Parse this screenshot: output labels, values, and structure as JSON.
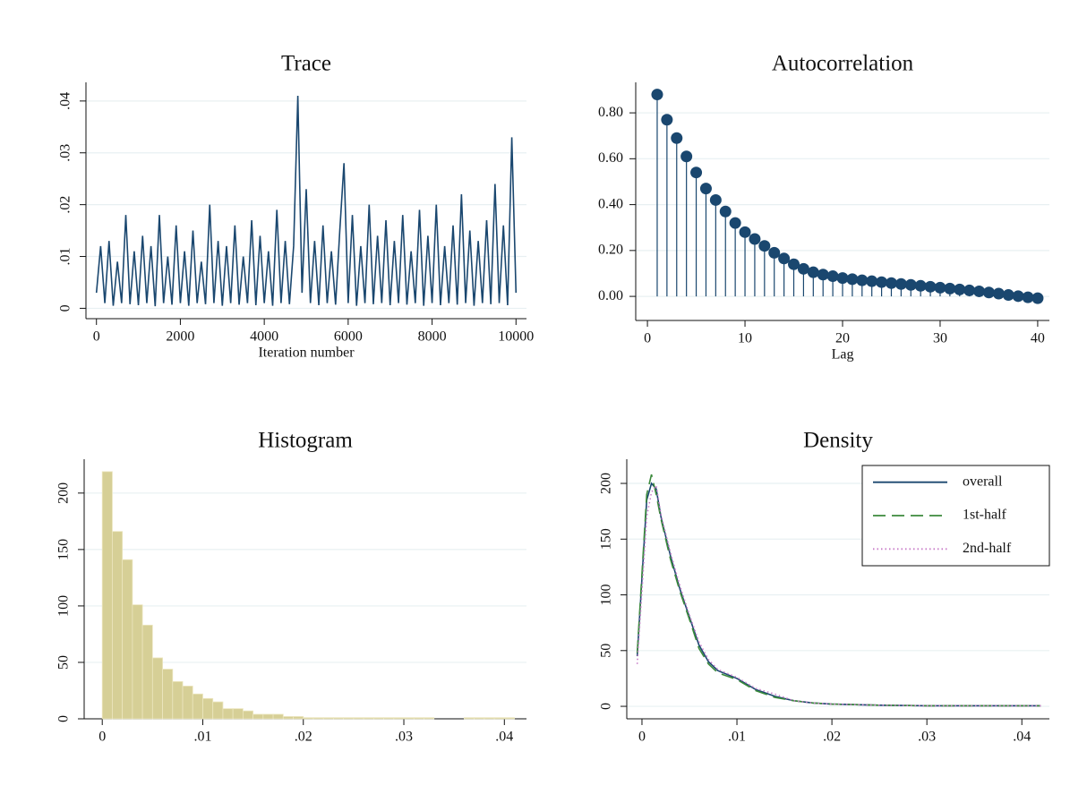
{
  "chart_data": [
    {
      "type": "line",
      "title": "Trace",
      "x_label": "Iteration number",
      "x": [
        0,
        100,
        200,
        300,
        400,
        500,
        600,
        700,
        800,
        900,
        1000,
        1100,
        1200,
        1300,
        1400,
        1500,
        1600,
        1700,
        1800,
        1900,
        2000,
        2100,
        2200,
        2300,
        2400,
        2500,
        2600,
        2700,
        2800,
        2900,
        3000,
        3100,
        3200,
        3300,
        3400,
        3500,
        3600,
        3700,
        3800,
        3900,
        4000,
        4100,
        4200,
        4300,
        4400,
        4500,
        4600,
        4700,
        4800,
        4900,
        5000,
        5100,
        5200,
        5300,
        5400,
        5500,
        5600,
        5700,
        5800,
        5900,
        6000,
        6100,
        6200,
        6300,
        6400,
        6500,
        6600,
        6700,
        6800,
        6900,
        7000,
        7100,
        7200,
        7300,
        7400,
        7500,
        7600,
        7700,
        7800,
        7900,
        8000,
        8100,
        8200,
        8300,
        8400,
        8500,
        8600,
        8700,
        8800,
        8900,
        9000,
        9100,
        9200,
        9300,
        9400,
        9500,
        9600,
        9700,
        9800,
        9900,
        10000
      ],
      "values": [
        0.003,
        0.012,
        0.001,
        0.013,
        0.0005,
        0.009,
        0.001,
        0.018,
        0.0008,
        0.011,
        0.0006,
        0.014,
        0.001,
        0.012,
        0.0004,
        0.018,
        0.001,
        0.01,
        0.0007,
        0.016,
        0.001,
        0.011,
        0.0005,
        0.015,
        0.001,
        0.009,
        0.0008,
        0.02,
        0.001,
        0.013,
        0.0005,
        0.012,
        0.001,
        0.016,
        0.0007,
        0.01,
        0.001,
        0.017,
        0.0006,
        0.014,
        0.001,
        0.011,
        0.0005,
        0.019,
        0.001,
        0.013,
        0.0008,
        0.012,
        0.041,
        0.003,
        0.023,
        0.001,
        0.013,
        0.0006,
        0.016,
        0.001,
        0.011,
        0.0007,
        0.015,
        0.028,
        0.001,
        0.018,
        0.0005,
        0.012,
        0.001,
        0.02,
        0.0008,
        0.014,
        0.001,
        0.017,
        0.0006,
        0.013,
        0.001,
        0.018,
        0.0007,
        0.011,
        0.001,
        0.019,
        0.0005,
        0.014,
        0.001,
        0.02,
        0.0006,
        0.012,
        0.001,
        0.016,
        0.0007,
        0.022,
        0.001,
        0.015,
        0.0005,
        0.013,
        0.001,
        0.017,
        0.0008,
        0.024,
        0.001,
        0.016,
        0.0006,
        0.033,
        0.003
      ],
      "color": "#1a476f",
      "xlim": [
        -250,
        10250
      ],
      "ylim": [
        -0.002,
        0.0436
      ],
      "xticks": [
        0,
        2000,
        4000,
        6000,
        8000,
        10000
      ],
      "yticks": [
        0,
        {
          "value": 0.01,
          "label": ".01"
        },
        {
          "value": 0.02,
          "label": ".02"
        },
        {
          "value": 0.03,
          "label": ".03"
        },
        {
          "value": 0.04,
          "label": ".04"
        }
      ],
      "grid": true
    },
    {
      "type": "stem",
      "title": "Autocorrelation",
      "x_label": "Lag",
      "x": [
        1,
        2,
        3,
        4,
        5,
        6,
        7,
        8,
        9,
        10,
        11,
        12,
        13,
        14,
        15,
        16,
        17,
        18,
        19,
        20,
        21,
        22,
        23,
        24,
        25,
        26,
        27,
        28,
        29,
        30,
        31,
        32,
        33,
        34,
        35,
        36,
        37,
        38,
        39,
        40
      ],
      "values": [
        0.88,
        0.77,
        0.69,
        0.61,
        0.54,
        0.47,
        0.42,
        0.37,
        0.32,
        0.28,
        0.25,
        0.22,
        0.19,
        0.165,
        0.14,
        0.12,
        0.105,
        0.095,
        0.088,
        0.08,
        0.075,
        0.07,
        0.066,
        0.062,
        0.058,
        0.054,
        0.05,
        0.046,
        0.042,
        0.038,
        0.034,
        0.03,
        0.026,
        0.022,
        0.017,
        0.012,
        0.006,
        0.001,
        -0.004,
        -0.008
      ],
      "color": "#1a476f",
      "xlim": [
        -1.2,
        41.2
      ],
      "ylim": [
        -0.105,
        0.933
      ],
      "xticks": [
        0,
        10,
        20,
        30,
        40
      ],
      "yticks": [
        {
          "value": 0,
          "label": "0.00"
        },
        {
          "value": 0.2,
          "label": "0.20"
        },
        {
          "value": 0.4,
          "label": "0.40"
        },
        {
          "value": 0.6,
          "label": "0.60"
        },
        {
          "value": 0.8,
          "label": "0.80"
        }
      ],
      "grid": true
    },
    {
      "type": "histogram",
      "title": "Histogram",
      "bins": [
        0,
        0.001,
        0.002,
        0.003,
        0.004,
        0.005,
        0.006,
        0.007,
        0.008,
        0.009,
        0.01,
        0.011,
        0.012,
        0.013,
        0.014,
        0.015,
        0.016,
        0.017,
        0.018,
        0.019,
        0.02,
        0.021,
        0.022,
        0.023,
        0.024,
        0.025,
        0.026,
        0.027,
        0.028,
        0.029,
        0.03,
        0.031,
        0.032,
        0.033,
        0.034,
        0.035,
        0.036,
        0.037,
        0.038,
        0.039,
        0.04,
        0.041,
        0.042
      ],
      "values": [
        219,
        166,
        141,
        101,
        83,
        54,
        44,
        33,
        29,
        22,
        18,
        15,
        9,
        9,
        7,
        4,
        4,
        4,
        2,
        2,
        1,
        1,
        1,
        1,
        1,
        1,
        1,
        1,
        1,
        1,
        1,
        1,
        1,
        0,
        0,
        0,
        1,
        1,
        1,
        1,
        1,
        0
      ],
      "color": "#d6cf96",
      "xlim": [
        -0.0018,
        0.0422
      ],
      "ylim": [
        0,
        230
      ],
      "xticks": [
        0,
        {
          "value": 0.01,
          "label": ".01"
        },
        {
          "value": 0.02,
          "label": ".02"
        },
        {
          "value": 0.03,
          "label": ".03"
        },
        {
          "value": 0.04,
          "label": ".04"
        }
      ],
      "yticks": [
        0,
        50,
        100,
        150,
        200
      ],
      "grid": true
    },
    {
      "type": "line",
      "title": "Density",
      "x": [
        -0.0005,
        0.0005,
        0.001,
        0.0015,
        0.002,
        0.003,
        0.004,
        0.005,
        0.006,
        0.007,
        0.008,
        0.01,
        0.012,
        0.014,
        0.016,
        0.018,
        0.02,
        0.025,
        0.03,
        0.035,
        0.04,
        0.042
      ],
      "series": [
        {
          "name": "overall",
          "color": "#1a476f",
          "style": "solid",
          "values": [
            45,
            185,
            200,
            195,
            170,
            135,
            105,
            80,
            55,
            40,
            32,
            25,
            15,
            9,
            5,
            3,
            2,
            1,
            0.5,
            0.5,
            0.5,
            0.5
          ]
        },
        {
          "name": "1st-half",
          "color": "#3c8a3c",
          "style": "dashed",
          "values": [
            48,
            190,
            208,
            190,
            168,
            132,
            103,
            78,
            52,
            38,
            30,
            24,
            14,
            8,
            5,
            3,
            2,
            1,
            0.5,
            0.5,
            0.5,
            0.5
          ]
        },
        {
          "name": "2nd-half",
          "color": "#c77cc7",
          "style": "dotted",
          "values": [
            38,
            170,
            192,
            198,
            172,
            138,
            108,
            82,
            58,
            42,
            33,
            26,
            16,
            11,
            5,
            3,
            2,
            1,
            0.5,
            0.5,
            0.5,
            0.5
          ]
        }
      ],
      "xlim": [
        -0.0016,
        0.0429
      ],
      "ylim": [
        -11.2,
        221.7
      ],
      "xticks": [
        0,
        {
          "value": 0.01,
          "label": ".01"
        },
        {
          "value": 0.02,
          "label": ".02"
        },
        {
          "value": 0.03,
          "label": ".03"
        },
        {
          "value": 0.04,
          "label": ".04"
        }
      ],
      "yticks": [
        0,
        50,
        100,
        150,
        200
      ],
      "grid": true,
      "legend": "top-right"
    }
  ]
}
